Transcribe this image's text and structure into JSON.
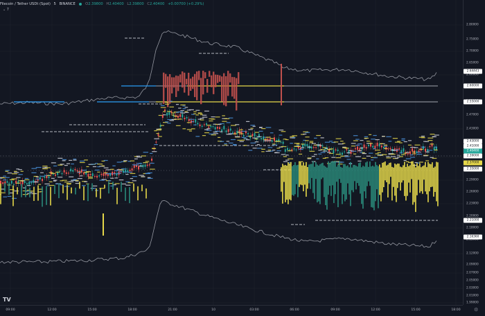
{
  "header": {
    "symbol": "Filecoin / Tether USDt (Spot)",
    "interval": "5",
    "exchange": "BINANCE",
    "ohlc": [
      {
        "k": "O",
        "v": "2.39800"
      },
      {
        "k": "H",
        "v": "2.40400"
      },
      {
        "k": "L",
        "v": "2.39800"
      },
      {
        "k": "C",
        "v": "2.40400"
      }
    ],
    "change": "+0.00700 (+0.29%)",
    "indicator_toggle": "⌄ 7"
  },
  "colors": {
    "background": "#131722",
    "up": "#26a69a",
    "down": "#ef5350",
    "yellow": "#e6d84a",
    "teal_band": "#2a8a7a",
    "red_band": "#c0504d",
    "blue_level": "#2a9df4",
    "white_line": "#d1d4dc",
    "grid": "#1e222d"
  },
  "price_axis": {
    "ticks": [
      "2.80000",
      "2.75000",
      "2.70000",
      "2.65000",
      "2.60000",
      "2.55000",
      "2.51000",
      "2.47000",
      "2.43000",
      "2.39000",
      "2.35000",
      "2.32000",
      "2.29000",
      "2.26000",
      "2.23000",
      "2.20000",
      "2.18000",
      "2.15000",
      "2.12000",
      "2.09000",
      "2.07000",
      "2.05000",
      "2.03000",
      "2.01000",
      "1.99000"
    ],
    "tags": [
      {
        "label": "2.64443",
        "bg": "#ffffff",
        "fg": "#131722"
      },
      {
        "label": "2.60000",
        "bg": "#ffffff",
        "fg": "#131722"
      },
      {
        "label": "2.55000",
        "bg": "#ffffff",
        "fg": "#131722"
      },
      {
        "label": "2.43000",
        "bg": "#ffffff",
        "fg": "#131722"
      },
      {
        "label": "2.41000",
        "bg": "#ffffff",
        "fg": "#131722"
      },
      {
        "label": "2.40400",
        "bg": "#26a69a",
        "fg": "#ffffff"
      },
      {
        "label": "2.39000",
        "bg": "#ffffff",
        "fg": "#131722"
      },
      {
        "label": "2.37000",
        "bg": "#e6d84a",
        "fg": "#131722"
      },
      {
        "label": "2.35000",
        "bg": "#ffffff",
        "fg": "#131722"
      },
      {
        "label": "2.21000",
        "bg": "#ffffff",
        "fg": "#131722"
      },
      {
        "label": "2.16360",
        "bg": "#ffffff",
        "fg": "#131722"
      }
    ]
  },
  "time_axis": {
    "labels": [
      "09:00",
      "12:00",
      "15:00",
      "18:00",
      "21:00",
      "10",
      "03:00",
      "06:00",
      "09:00",
      "12:00",
      "15:00",
      "18:00"
    ]
  },
  "logo_text": "TV",
  "settings_icon": "gear-icon"
}
